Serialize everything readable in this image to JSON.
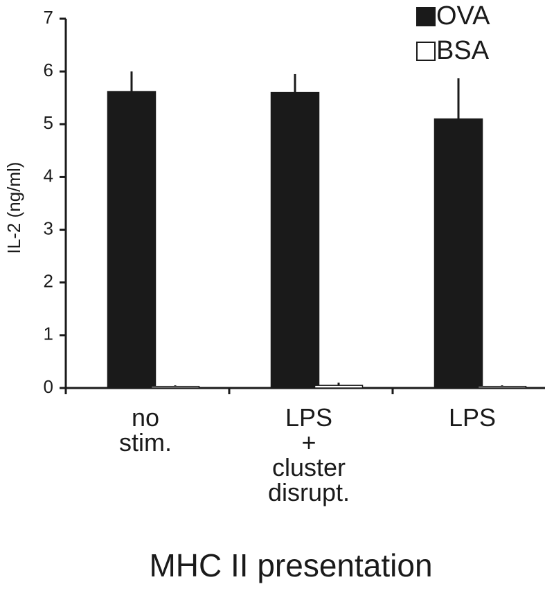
{
  "chart_data": {
    "type": "bar",
    "title": "MHC II presentation",
    "y_label": "IL-2 (ng/ml)",
    "categories": [
      "no stim.",
      "LPS + cluster disrupt.",
      "LPS"
    ],
    "series": [
      {
        "name": "OVA",
        "color": "#1a1a1a",
        "values": [
          5.62,
          5.6,
          5.1
        ],
        "errors": [
          0.38,
          0.35,
          0.77
        ]
      },
      {
        "name": "BSA",
        "color": "#ffffff",
        "values": [
          0.03,
          0.05,
          0.03
        ],
        "errors": [
          0.02,
          0.05,
          0.02
        ]
      }
    ],
    "ylim": [
      0,
      7
    ],
    "yticks": [
      0,
      1,
      2,
      3,
      4,
      5,
      6,
      7
    ],
    "legend": "top-right"
  }
}
